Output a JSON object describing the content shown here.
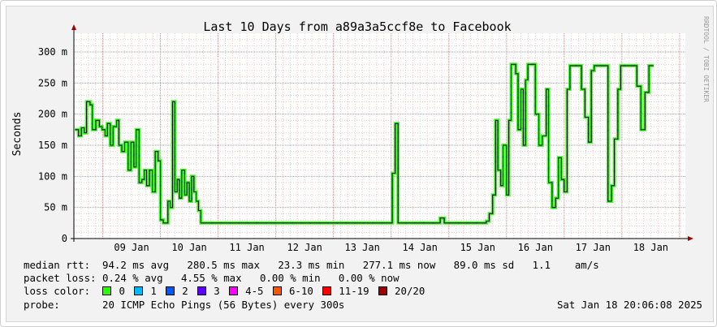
{
  "chart_data": {
    "type": "line",
    "title": "Last 10 Days from a89a3a5ccf8e to Facebook",
    "ylabel": "Seconds",
    "ylim_ms": [
      0,
      330
    ],
    "y_ticks": [
      {
        "v": 0,
        "label": "0"
      },
      {
        "v": 50,
        "label": "50 m"
      },
      {
        "v": 100,
        "label": "100 m"
      },
      {
        "v": 150,
        "label": "150 m"
      },
      {
        "v": 200,
        "label": "200 m"
      },
      {
        "v": 250,
        "label": "250 m"
      },
      {
        "v": 300,
        "label": "300 m"
      }
    ],
    "x_ticks": [
      "09 Jan",
      "10 Jan",
      "11 Jan",
      "12 Jan",
      "13 Jan",
      "14 Jan",
      "15 Jan",
      "16 Jan",
      "17 Jan",
      "18 Jan"
    ],
    "x_range_days": [
      8.5,
      19.1
    ],
    "grid": true,
    "watermark": "RRDTOOL / TOBI OETIKER",
    "series": [
      {
        "name": "median rtt",
        "points": [
          [
            8.52,
            175
          ],
          [
            8.58,
            165
          ],
          [
            8.63,
            178
          ],
          [
            8.68,
            170
          ],
          [
            8.72,
            220
          ],
          [
            8.78,
            215
          ],
          [
            8.82,
            175
          ],
          [
            8.88,
            190
          ],
          [
            8.94,
            180
          ],
          [
            8.99,
            175
          ],
          [
            9.04,
            165
          ],
          [
            9.08,
            185
          ],
          [
            9.13,
            150
          ],
          [
            9.18,
            180
          ],
          [
            9.24,
            190
          ],
          [
            9.28,
            150
          ],
          [
            9.33,
            140
          ],
          [
            9.38,
            155
          ],
          [
            9.44,
            110
          ],
          [
            9.49,
            155
          ],
          [
            9.54,
            115
          ],
          [
            9.58,
            175
          ],
          [
            9.63,
            90
          ],
          [
            9.68,
            95
          ],
          [
            9.72,
            110
          ],
          [
            9.76,
            85
          ],
          [
            9.81,
            110
          ],
          [
            9.86,
            75
          ],
          [
            9.91,
            140
          ],
          [
            9.96,
            125
          ],
          [
            10.0,
            30
          ],
          [
            10.05,
            25
          ],
          [
            10.1,
            25
          ],
          [
            10.13,
            60
          ],
          [
            10.17,
            50
          ],
          [
            10.21,
            220
          ],
          [
            10.25,
            75
          ],
          [
            10.29,
            95
          ],
          [
            10.33,
            65
          ],
          [
            10.37,
            110
          ],
          [
            10.42,
            70
          ],
          [
            10.46,
            90
          ],
          [
            10.5,
            60
          ],
          [
            10.54,
            100
          ],
          [
            10.58,
            75
          ],
          [
            10.62,
            60
          ],
          [
            10.66,
            45
          ],
          [
            10.7,
            25
          ],
          [
            11.5,
            25
          ],
          [
            12.5,
            25
          ],
          [
            13.0,
            25
          ],
          [
            13.5,
            25
          ],
          [
            13.98,
            25
          ],
          [
            14.02,
            105
          ],
          [
            14.07,
            185
          ],
          [
            14.12,
            25
          ],
          [
            14.8,
            25
          ],
          [
            14.85,
            33
          ],
          [
            14.92,
            25
          ],
          [
            15.5,
            25
          ],
          [
            15.65,
            28
          ],
          [
            15.7,
            40
          ],
          [
            15.76,
            70
          ],
          [
            15.81,
            190
          ],
          [
            15.85,
            110
          ],
          [
            15.9,
            85
          ],
          [
            15.94,
            150
          ],
          [
            16.0,
            70
          ],
          [
            16.04,
            190
          ],
          [
            16.08,
            280
          ],
          [
            16.16,
            265
          ],
          [
            16.2,
            175
          ],
          [
            16.25,
            240
          ],
          [
            16.29,
            150
          ],
          [
            16.33,
            255
          ],
          [
            16.37,
            280
          ],
          [
            16.5,
            200
          ],
          [
            16.56,
            150
          ],
          [
            16.62,
            165
          ],
          [
            16.69,
            240
          ],
          [
            16.73,
            90
          ],
          [
            16.79,
            50
          ],
          [
            16.85,
            65
          ],
          [
            16.9,
            130
          ],
          [
            16.95,
            95
          ],
          [
            17.0,
            75
          ],
          [
            17.05,
            240
          ],
          [
            17.1,
            278
          ],
          [
            17.3,
            240
          ],
          [
            17.36,
            195
          ],
          [
            17.42,
            155
          ],
          [
            17.47,
            270
          ],
          [
            17.52,
            278
          ],
          [
            17.7,
            278
          ],
          [
            17.76,
            60
          ],
          [
            17.82,
            85
          ],
          [
            17.87,
            160
          ],
          [
            17.93,
            240
          ],
          [
            17.98,
            278
          ],
          [
            18.2,
            278
          ],
          [
            18.26,
            245
          ],
          [
            18.33,
            175
          ],
          [
            18.4,
            235
          ],
          [
            18.47,
            278
          ],
          [
            18.55,
            278
          ]
        ]
      }
    ]
  },
  "legend": {
    "rtt_label": "median rtt:",
    "rtt_text": "94.2 ms avg   280.5 ms max   23.3 ms min   277.1 ms now   89.0 ms sd   1.1    am/s",
    "loss_label": "packet loss:",
    "loss_text": "0.24 % avg   4.55 % max   0.00 % min   0.00 % now",
    "color_label": "loss color:",
    "colors": [
      {
        "label": "0",
        "color": "#26ff00"
      },
      {
        "label": "1",
        "color": "#00b8ff"
      },
      {
        "label": "2",
        "color": "#0059ff"
      },
      {
        "label": "3",
        "color": "#5e00ff"
      },
      {
        "label": "4-5",
        "color": "#ff00ff"
      },
      {
        "label": "6-10",
        "color": "#ff5500"
      },
      {
        "label": "11-19",
        "color": "#ff0000"
      },
      {
        "label": "20/20",
        "color": "#a10000"
      }
    ],
    "probe_label": "probe:",
    "probe_text": "20 ICMP Echo Pings (56 Bytes) every 300s",
    "timestamp": "Sat Jan 18 20:06:08 2025"
  }
}
